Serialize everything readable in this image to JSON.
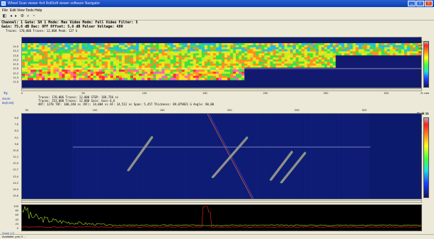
{
  "window": {
    "title": "Wheel Scan viewer 4x4 RollSoft viewer software Navigator",
    "minimize_icon": "minimize-icon",
    "maximize_icon": "maximize-icon",
    "close_icon": "close-icon"
  },
  "menu": [
    "File",
    "Edit",
    "View",
    "Tools",
    "Help"
  ],
  "info": {
    "line1": "Channel: 1  Gate: SH 1  Mode: Max  Video Mode: Full  Video Filter: 5",
    "line2": "Gain: 75,6 dB  Dac: OFF  Offset: 5,6 dB  Pulser Voltage: 400",
    "line3": "Traces: 170,006  Traces: 12,000  Peak: 127 G"
  },
  "cscan": {
    "yticks": [
      "14,9",
      "14,3",
      "13,8",
      "13,2",
      "12,9",
      "12,5",
      "12,2",
      "11,9",
      "11,5"
    ],
    "xticks": [
      "0",
      "50",
      "100",
      "150",
      "200",
      "250",
      "300"
    ],
    "colorbar_ticks": [
      "Pk",
      "120",
      "110",
      "100",
      "90",
      "80",
      "70",
      "60",
      "50",
      "40",
      "30",
      "20",
      "10"
    ],
    "units": "G: mm"
  },
  "bscan_header": {
    "zoom_label": "Zoom",
    "zoom_value": "8x(0.00)",
    "line1": "Traces: 170,006  Traces: 12,000  STEP: 169,750 ss",
    "line2": "Traces: 253,000  Traces: 12,000  Gain: Gain 6,6",
    "line3": "ART: 1270  TOF: 100,240 ss  (RF): 14,004 ss  AF: 14,512 ss  Span: 5,457  Thickness: 89,879821 G  Angle: 90,00",
    "xticks": [
      "50",
      "100",
      "150",
      "200",
      "250",
      "300"
    ],
    "peak_label": "Peak 11"
  },
  "bscan": {
    "yticks": [
      "6,8",
      "7,6",
      "8,3",
      "9,1",
      "9,6",
      "10,5",
      "11,2",
      "12,0",
      "12,7",
      "13,4",
      "14,2",
      "14,9",
      "15,6"
    ],
    "colorbar_ticks": [
      "",
      "120",
      "110",
      "100",
      "90",
      "80",
      "70",
      "60",
      "50",
      "40",
      "30",
      "20",
      "10"
    ]
  },
  "ascan": {
    "yticks": [
      "100",
      "80",
      "60",
      "40",
      "20",
      "0"
    ]
  },
  "footer": {
    "zoom_label": "Zoom 1.0",
    "status": "Available: pos: 0 ..."
  },
  "colors": {
    "titlebar": "#1a4fc8",
    "background": "#ece9d8",
    "bscan_bg": "#0c1a6e",
    "ascan_bg": "#000000",
    "ascan_green": "#a8e02a",
    "ascan_red": "#ff2a1a"
  }
}
